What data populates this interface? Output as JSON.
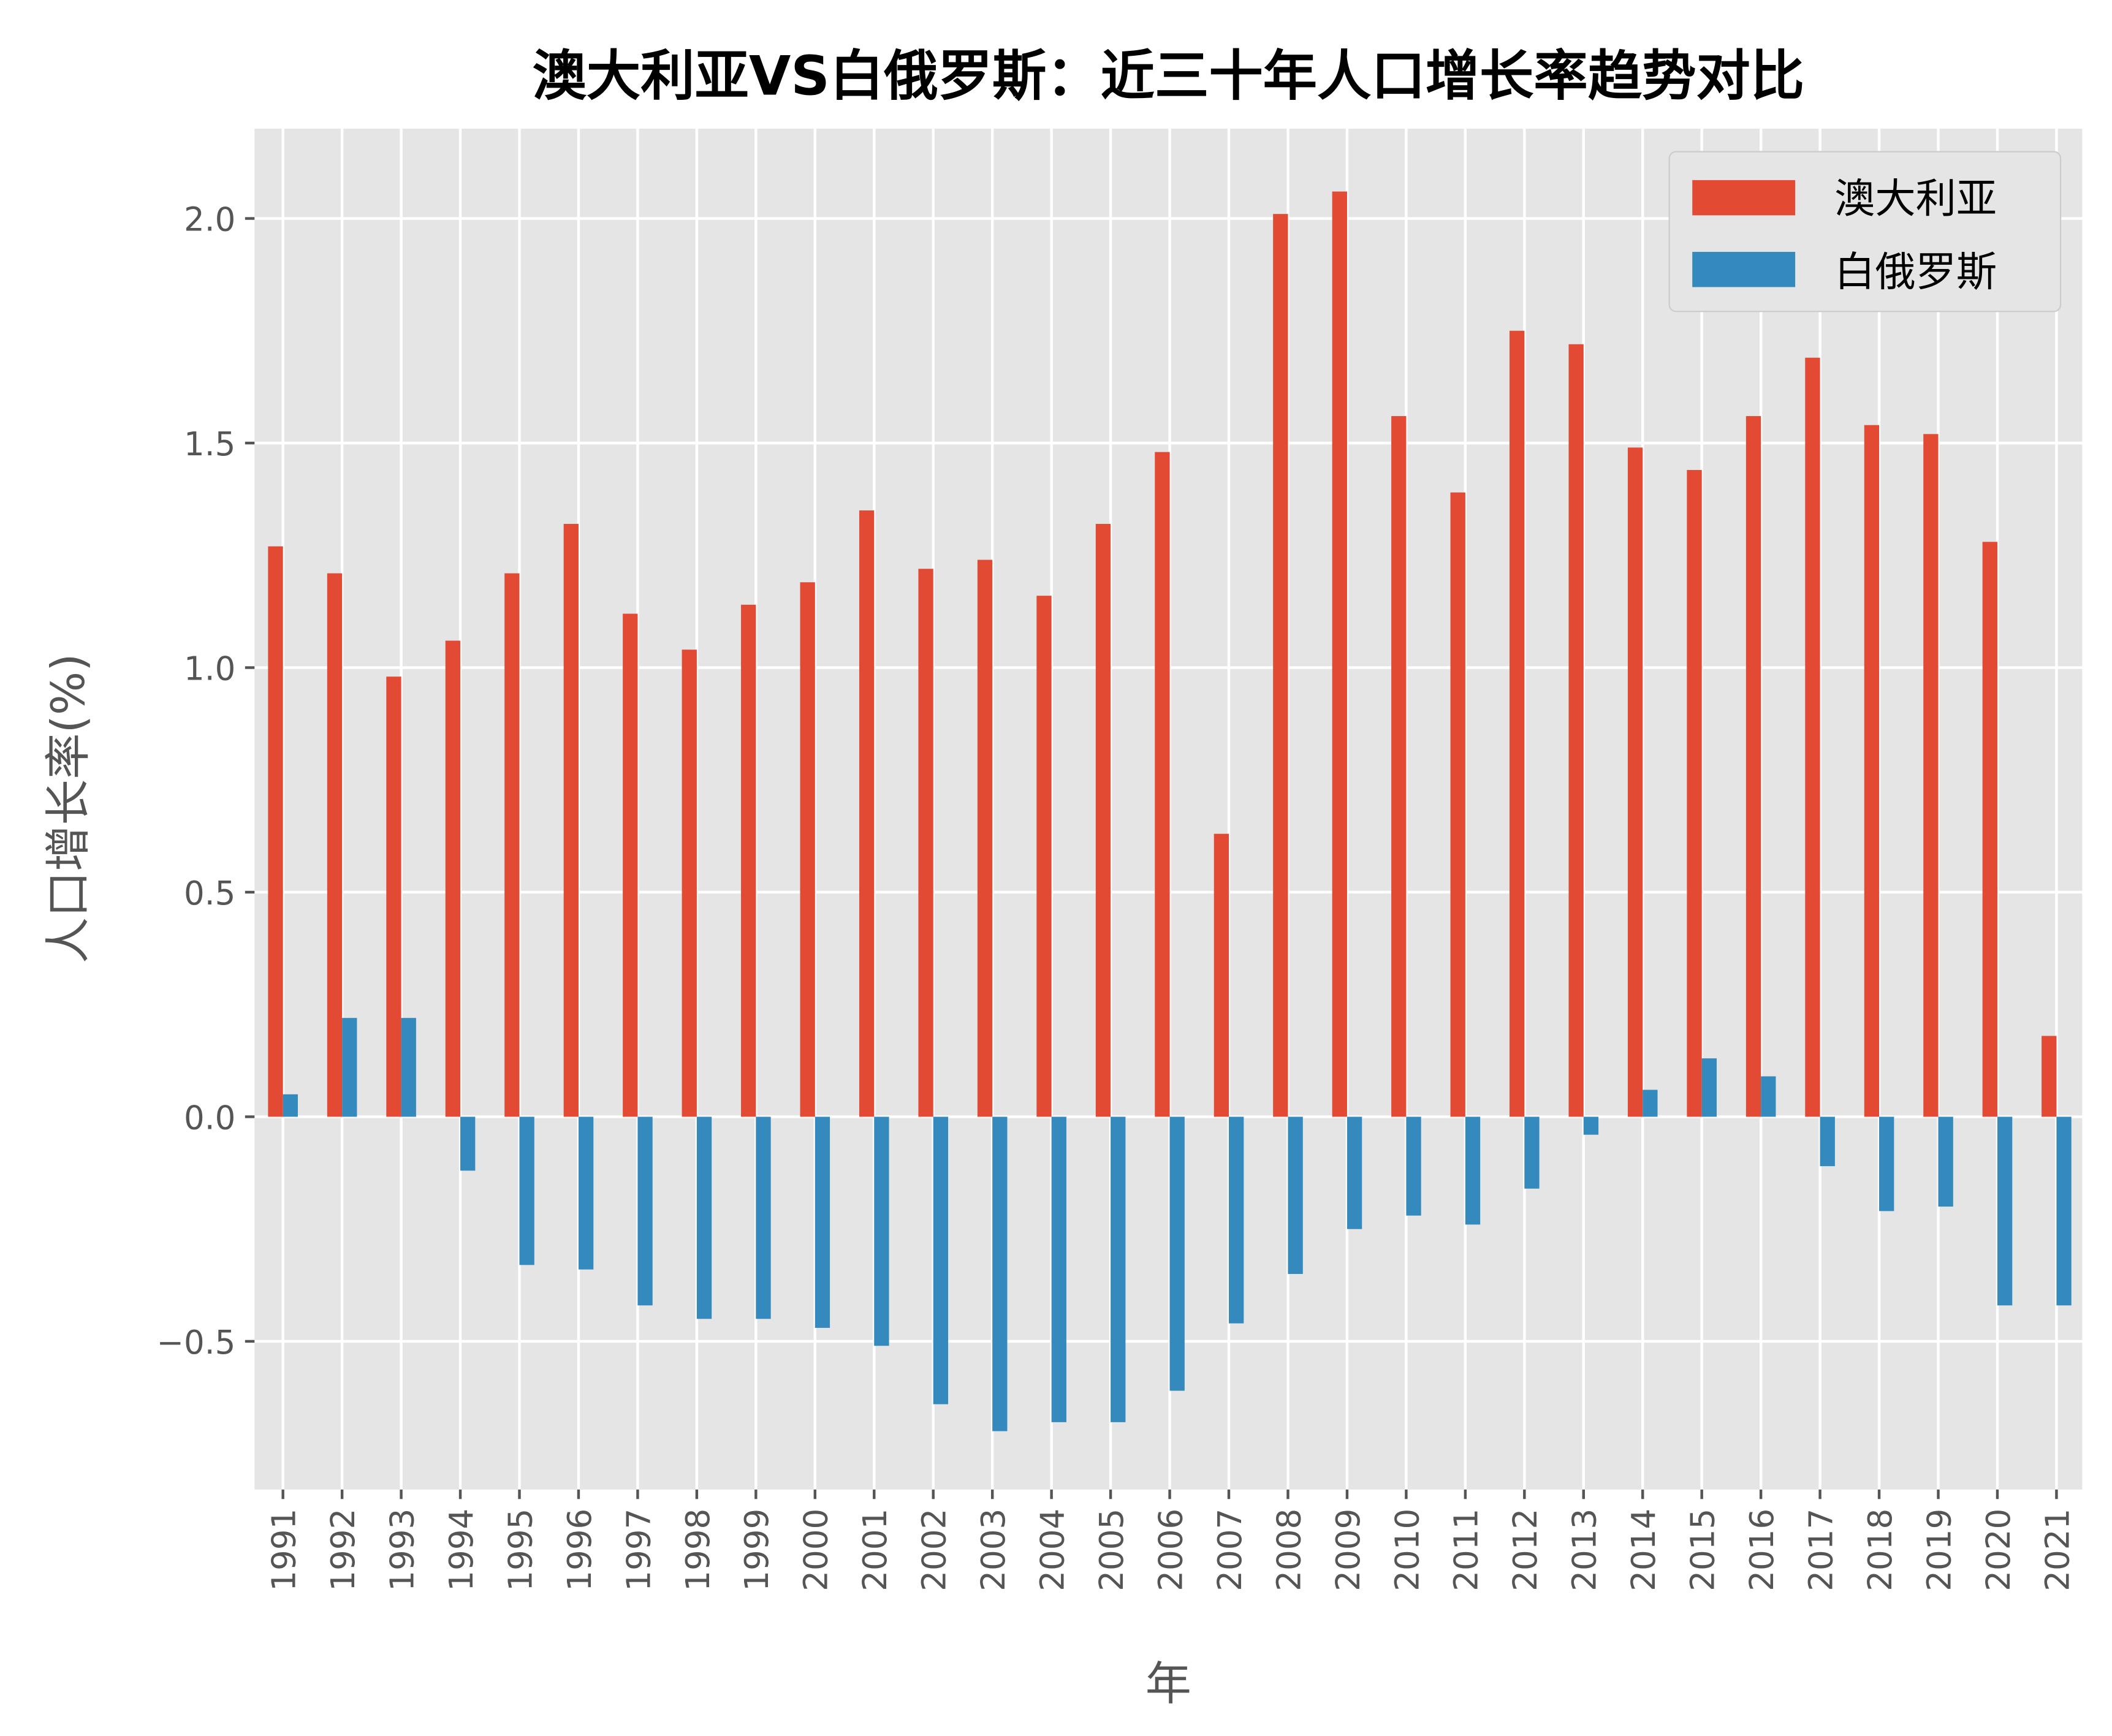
{
  "chart_data": {
    "type": "bar",
    "title": "澳大利亚VS白俄罗斯：近三十年人口增长率趋势对比",
    "xlabel": "年",
    "ylabel": "人口增长率(%)",
    "ylim": [
      -0.83,
      2.2
    ],
    "yticks": [
      -0.5,
      0.0,
      0.5,
      1.0,
      1.5,
      2.0
    ],
    "ytick_labels": [
      "−0.5",
      "0.0",
      "0.5",
      "1.0",
      "1.5",
      "2.0"
    ],
    "grid": true,
    "legend_position": "top-right",
    "categories": [
      "1991",
      "1992",
      "1993",
      "1994",
      "1995",
      "1996",
      "1997",
      "1998",
      "1999",
      "2000",
      "2001",
      "2002",
      "2003",
      "2004",
      "2005",
      "2006",
      "2007",
      "2008",
      "2009",
      "2010",
      "2011",
      "2012",
      "2013",
      "2014",
      "2015",
      "2016",
      "2017",
      "2018",
      "2019",
      "2020",
      "2021"
    ],
    "series": [
      {
        "name": "澳大利亚",
        "color": "#E24A33",
        "values": [
          1.27,
          1.21,
          0.98,
          1.06,
          1.21,
          1.32,
          1.12,
          1.04,
          1.14,
          1.19,
          1.35,
          1.22,
          1.24,
          1.16,
          1.32,
          1.48,
          0.63,
          2.01,
          2.06,
          1.56,
          1.39,
          1.75,
          1.72,
          1.49,
          1.44,
          1.56,
          1.69,
          1.54,
          1.52,
          1.28,
          0.18
        ]
      },
      {
        "name": "白俄罗斯",
        "color": "#348ABD",
        "values": [
          0.05,
          0.22,
          0.22,
          -0.12,
          -0.33,
          -0.34,
          -0.42,
          -0.45,
          -0.45,
          -0.47,
          -0.51,
          -0.64,
          -0.7,
          -0.68,
          -0.68,
          -0.61,
          -0.46,
          -0.35,
          -0.25,
          -0.22,
          -0.24,
          -0.16,
          -0.04,
          0.06,
          0.13,
          0.09,
          -0.11,
          -0.21,
          -0.2,
          -0.42,
          -0.42
        ]
      }
    ],
    "background_color": "#E5E5E5",
    "grid_color": "#FFFFFF"
  }
}
